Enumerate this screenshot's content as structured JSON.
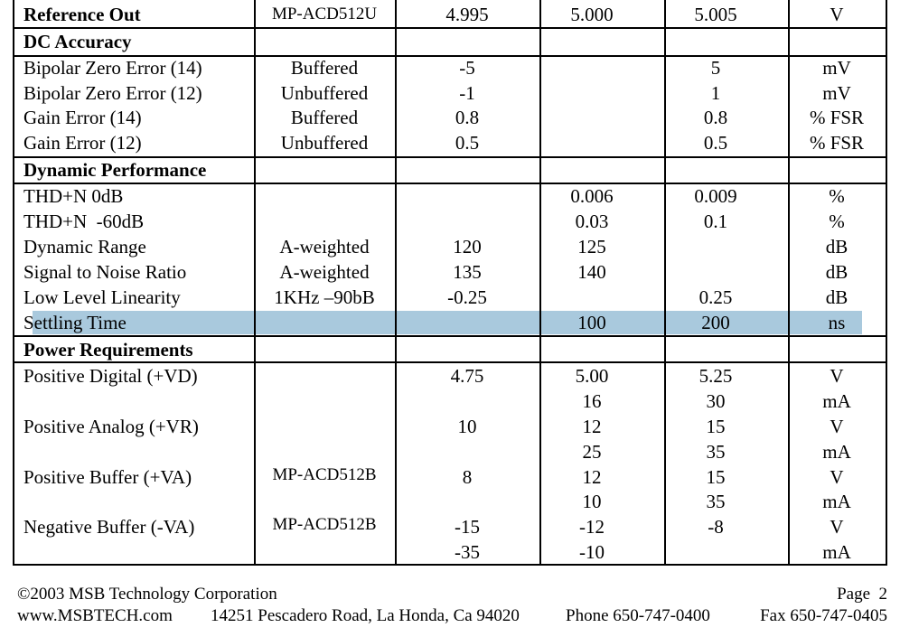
{
  "reference_out": {
    "name": "Reference Out",
    "cond": "MP-ACD512U",
    "min": "4.995",
    "typ": "5.000",
    "max": "5.005",
    "unit": "V"
  },
  "dc_accuracy": {
    "title": "DC Accuracy",
    "rows": [
      {
        "name": "Bipolar Zero Error (14)",
        "cond": "Buffered",
        "min": "-5",
        "typ": "",
        "max": "5",
        "unit": "mV"
      },
      {
        "name": "Bipolar Zero Error (12)",
        "cond": "Unbuffered",
        "min": "-1",
        "typ": "",
        "max": "1",
        "unit": "mV"
      },
      {
        "name": "Gain Error (14)",
        "cond": "Buffered",
        "min": "0.8",
        "typ": "",
        "max": "0.8",
        "unit": "% FSR"
      },
      {
        "name": "Gain Error (12)",
        "cond": "Unbuffered",
        "min": "0.5",
        "typ": "",
        "max": "0.5",
        "unit": "% FSR"
      }
    ]
  },
  "dynamic_performance": {
    "title": "Dynamic Performance",
    "rows": [
      {
        "name": "THD+N 0dB",
        "cond": "",
        "min": "",
        "typ": "0.006",
        "max": "0.009",
        "unit": "%"
      },
      {
        "name": "THD+N  -60dB",
        "cond": "",
        "min": "",
        "typ": "0.03",
        "max": "0.1",
        "unit": "%"
      },
      {
        "name": "Dynamic Range",
        "cond": "A-weighted",
        "min": "120",
        "typ": "125",
        "max": "",
        "unit": "dB"
      },
      {
        "name": "Signal to Noise Ratio",
        "cond": "A-weighted",
        "min": "135",
        "typ": "140",
        "max": "",
        "unit": "dB"
      },
      {
        "name": "Low Level Linearity",
        "cond": "1KHz –90bB",
        "min": "-0.25",
        "typ": "",
        "max": "0.25",
        "unit": "dB"
      },
      {
        "name": "Settling Time",
        "cond": "",
        "min": "",
        "typ": "100",
        "max": "200",
        "unit": "ns"
      }
    ]
  },
  "power_requirements": {
    "title": "Power Requirements",
    "groups": [
      {
        "name": "Positive Digital (+VD)",
        "cond": "",
        "rows": [
          {
            "min": "4.75",
            "typ": "5.00",
            "max": "5.25",
            "unit": "V"
          },
          {
            "min": "",
            "typ": "16",
            "max": "30",
            "unit": "mA"
          }
        ]
      },
      {
        "name": "Positive Analog (+VR)",
        "cond": "",
        "rows": [
          {
            "min": "10",
            "typ": "12",
            "max": "15",
            "unit": "V"
          },
          {
            "min": "",
            "typ": "25",
            "max": "35",
            "unit": "mA"
          }
        ]
      },
      {
        "name": "Positive Buffer (+VA)",
        "cond": "MP-ACD512B",
        "rows": [
          {
            "min": "8",
            "typ": "12",
            "max": "15",
            "unit": "V"
          },
          {
            "min": "",
            "typ": "10",
            "max": "35",
            "unit": "mA"
          }
        ]
      },
      {
        "name": "Negative Buffer (-VA)",
        "cond": "MP-ACD512B",
        "rows": [
          {
            "min": "-15",
            "typ": "-12",
            "max": "-8",
            "unit": "V"
          },
          {
            "min": "-35",
            "typ": "-10",
            "max": "",
            "unit": "mA"
          }
        ]
      }
    ]
  },
  "footer": {
    "copyright": "©2003 MSB Technology Corporation",
    "page": "Page  2",
    "website": "www.MSBTECH.com",
    "address": "14251 Pescadero Road, La Honda, Ca 94020",
    "phone": "Phone 650-747-0400",
    "fax": "Fax 650-747-0405"
  }
}
